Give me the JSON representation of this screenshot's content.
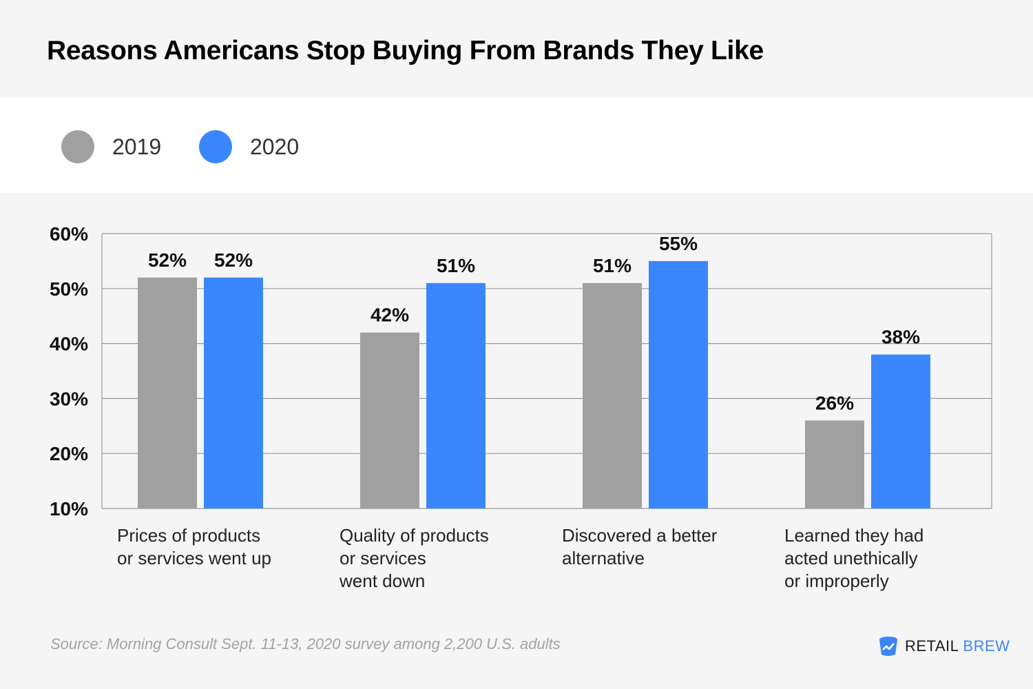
{
  "title": "Reasons Americans Stop Buying From Brands They Like",
  "legend": [
    {
      "label": "2019",
      "color": "#a0a0a0"
    },
    {
      "label": "2020",
      "color": "#3a87fd"
    }
  ],
  "chart_data": {
    "type": "bar",
    "categories": [
      [
        "Prices of products",
        "or services went up"
      ],
      [
        "Quality of products",
        "or services",
        "went down"
      ],
      [
        "Discovered a better",
        "alternative"
      ],
      [
        "Learned they had",
        "acted unethically",
        "or improperly"
      ]
    ],
    "series": [
      {
        "name": "2019",
        "values": [
          52,
          42,
          51,
          26
        ],
        "labels": [
          "52%",
          "42%",
          "51%",
          "26%"
        ],
        "color": "#a0a0a0"
      },
      {
        "name": "2020",
        "values": [
          52,
          51,
          55,
          38
        ],
        "labels": [
          "52%",
          "51%",
          "55%",
          "38%"
        ],
        "color": "#3a87fd"
      }
    ],
    "ylim": [
      10,
      60
    ],
    "yticks": [
      60,
      50,
      40,
      30,
      20,
      10
    ],
    "ytick_labels": [
      "60%",
      "50%",
      "40%",
      "30%",
      "20%",
      "10%"
    ],
    "grid": true,
    "legend_position": "top-left"
  },
  "footer": {
    "source": "Source: Morning Consult Sept. 11-13, 2020 survey among 2,200 U.S. adults",
    "brand_retail": "RETAIL",
    "brand_brew": "BREW",
    "brand_icon": "coffee-cup-chart-icon"
  }
}
